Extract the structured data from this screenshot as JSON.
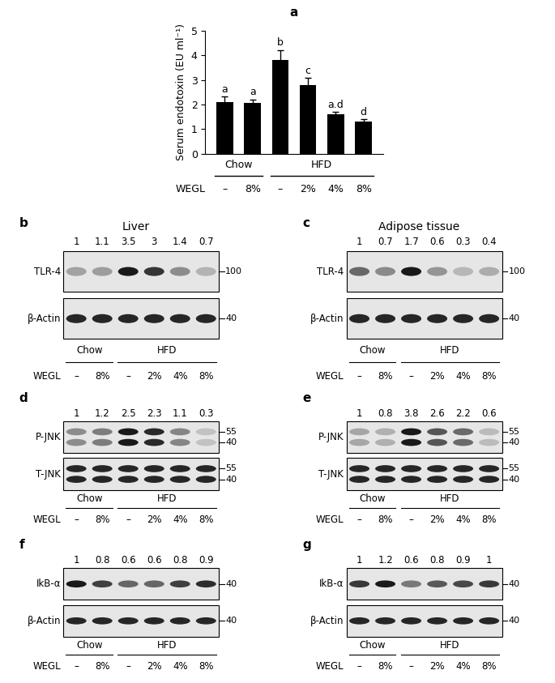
{
  "chart_data": {
    "type": "bar",
    "panel": "a",
    "y_label": "Serum endotoxin (EU ml⁻¹)",
    "categories": [
      "–",
      "8%",
      "–",
      "2%",
      "4%",
      "8%"
    ],
    "values": [
      2.1,
      2.05,
      3.8,
      2.8,
      1.6,
      1.3
    ],
    "errors": [
      0.22,
      0.15,
      0.42,
      0.28,
      0.1,
      0.1
    ],
    "significance": [
      "a",
      "a",
      "b",
      "c",
      "a.d",
      "d"
    ],
    "groups": [
      {
        "name": "Chow",
        "count": 2
      },
      {
        "name": "HFD",
        "count": 4
      }
    ],
    "row_label": "WEGL",
    "color": "#000000",
    "ylim": [
      0,
      5
    ],
    "yticks": [
      0,
      1,
      2,
      3,
      4,
      5
    ],
    "tick_labels": "y"
  },
  "blots": [
    {
      "panel": "b",
      "title": "Liver",
      "quantification": [
        1,
        1.1,
        3.5,
        3,
        1.4,
        0.7
      ],
      "rows": [
        {
          "name": "TLR-4",
          "markers": [
            100
          ]
        },
        {
          "name": "β-Actin",
          "markers": [
            40
          ]
        }
      ],
      "lanes": [
        "–",
        "8%",
        "–",
        "2%",
        "4%",
        "8%"
      ],
      "groups": [
        {
          "name": "Chow",
          "count": 2
        },
        {
          "name": "HFD",
          "count": 4
        }
      ],
      "row_label": "WEGL"
    },
    {
      "panel": "c",
      "title": "Adipose tissue",
      "quantification": [
        1,
        0.7,
        1.7,
        0.6,
        0.3,
        0.4
      ],
      "rows": [
        {
          "name": "TLR-4",
          "markers": [
            100
          ]
        },
        {
          "name": "β-Actin",
          "markers": [
            40
          ]
        }
      ],
      "lanes": [
        "–",
        "8%",
        "–",
        "2%",
        "4%",
        "8%"
      ],
      "groups": [
        {
          "name": "Chow",
          "count": 2
        },
        {
          "name": "HFD",
          "count": 4
        }
      ],
      "row_label": "WEGL"
    },
    {
      "panel": "d",
      "quantification": [
        1,
        1.2,
        2.5,
        2.3,
        1.1,
        0.3
      ],
      "rows": [
        {
          "name": "P-JNK",
          "markers": [
            55,
            40
          ]
        },
        {
          "name": "T-JNK",
          "markers": [
            55,
            40
          ]
        }
      ],
      "lanes": [
        "–",
        "8%",
        "–",
        "2%",
        "4%",
        "8%"
      ],
      "groups": [
        {
          "name": "Chow",
          "count": 2
        },
        {
          "name": "HFD",
          "count": 4
        }
      ],
      "row_label": "WEGL"
    },
    {
      "panel": "e",
      "quantification": [
        1,
        0.8,
        3.8,
        2.6,
        2.2,
        0.6
      ],
      "rows": [
        {
          "name": "P-JNK",
          "markers": [
            55,
            40
          ]
        },
        {
          "name": "T-JNK",
          "markers": [
            55,
            40
          ]
        }
      ],
      "lanes": [
        "–",
        "8%",
        "–",
        "2%",
        "4%",
        "8%"
      ],
      "groups": [
        {
          "name": "Chow",
          "count": 2
        },
        {
          "name": "HFD",
          "count": 4
        }
      ],
      "row_label": "WEGL"
    },
    {
      "panel": "f",
      "quantification": [
        1,
        0.8,
        0.6,
        0.6,
        0.8,
        0.9
      ],
      "rows": [
        {
          "name": "IkB-α",
          "markers": [
            40
          ]
        },
        {
          "name": "β-Actin",
          "markers": [
            40
          ]
        }
      ],
      "lanes": [
        "–",
        "8%",
        "–",
        "2%",
        "4%",
        "8%"
      ],
      "groups": [
        {
          "name": "Chow",
          "count": 2
        },
        {
          "name": "HFD",
          "count": 4
        }
      ],
      "row_label": "WEGL"
    },
    {
      "panel": "g",
      "quantification": [
        1,
        1.2,
        0.6,
        0.8,
        0.9,
        1
      ],
      "rows": [
        {
          "name": "IkB-α",
          "markers": [
            40
          ]
        },
        {
          "name": "β-Actin",
          "markers": [
            40
          ]
        }
      ],
      "lanes": [
        "–",
        "8%",
        "–",
        "2%",
        "4%",
        "8%"
      ],
      "groups": [
        {
          "name": "Chow",
          "count": 2
        },
        {
          "name": "HFD",
          "count": 4
        }
      ],
      "row_label": "WEGL"
    }
  ]
}
